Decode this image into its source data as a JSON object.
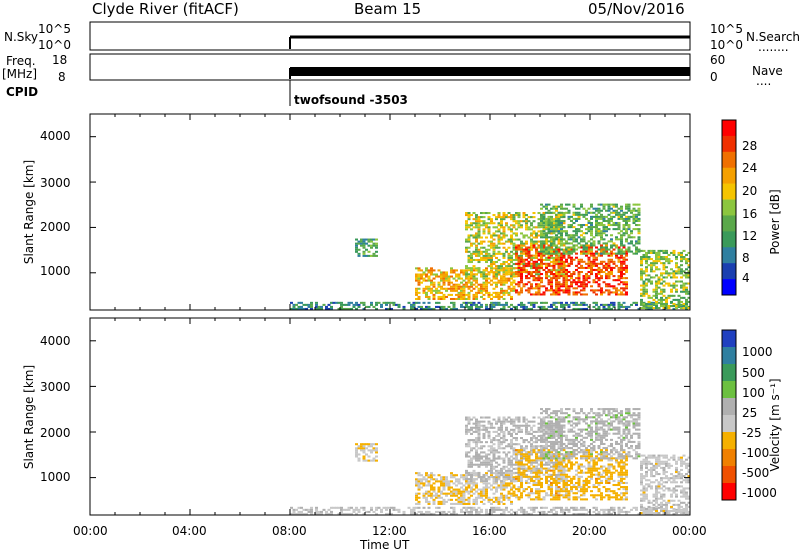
{
  "header": {
    "station": "Clyde River (fitACF)",
    "beam": "Beam 15",
    "date": "05/Nov/2016"
  },
  "top_panels": {
    "nsky_label": "N.Sky",
    "nsky_ticks": [
      "10^5",
      "10^0"
    ],
    "nsearch_label": "N.Search",
    "nsearch_ticks": [
      "10^5",
      "10^0"
    ],
    "freq_label": "Freq.",
    "freq_unit": "[MHz]",
    "freq_ticks": [
      "18",
      "8"
    ],
    "nave_label": "Nave",
    "nave_ticks": [
      "60",
      "0"
    ],
    "cpid_label": "CPID",
    "cpid_value": "twofsound -3503"
  },
  "x_axis": {
    "label": "Time UT",
    "ticks": [
      "00:00",
      "04:00",
      "08:00",
      "12:00",
      "16:00",
      "20:00",
      "00:00"
    ]
  },
  "power_panel": {
    "ylabel": "Slant Range [km]",
    "yticks": [
      "4000",
      "3000",
      "2000",
      "1000"
    ],
    "colorbar_label": "Power [dB]",
    "colorbar_ticks": [
      "28",
      "24",
      "20",
      "16",
      "12",
      "8",
      "4"
    ],
    "colors": [
      "#0000ff",
      "#1a3fb0",
      "#2f7fa0",
      "#3a9a5a",
      "#5aa84a",
      "#8cc63f",
      "#f5c400",
      "#f5a000",
      "#f07000",
      "#f03000",
      "#ff0000"
    ]
  },
  "velocity_panel": {
    "ylabel": "Slant Range [km]",
    "yticks": [
      "4000",
      "3000",
      "2000",
      "1000"
    ],
    "colorbar_label": "Velocity [m s⁻¹]",
    "colorbar_ticks": [
      "1000",
      "500",
      "100",
      "25",
      "-25",
      "-100",
      "-500",
      "-1000"
    ],
    "colors": [
      "#2040c0",
      "#2f7fa0",
      "#3a9a5a",
      "#6cc040",
      "#b0b0b0",
      "#c8c8c8",
      "#f5b000",
      "#f08000",
      "#f05000",
      "#ff0000"
    ]
  },
  "chart_data": {
    "type": "heatmap",
    "x_unit": "hours UT",
    "x_range": [
      0,
      24
    ],
    "y_range_km": [
      180,
      4500
    ],
    "data_start_hour": 8,
    "power_scale_db": [
      0,
      30
    ],
    "velocity_scale_ms": [
      -1000,
      1000
    ],
    "echo_regions": [
      {
        "t_start": 8.0,
        "t_end": 24.0,
        "r_min": 180,
        "r_max": 320,
        "power_db": 8,
        "velocity_ms": -50
      },
      {
        "t_start": 10.6,
        "t_end": 11.4,
        "r_min": 1350,
        "r_max": 1750,
        "power_db": 10,
        "velocity_ms": -150
      },
      {
        "t_start": 13.0,
        "t_end": 17.0,
        "r_min": 400,
        "r_max": 1100,
        "power_db": 20,
        "velocity_ms": -200
      },
      {
        "t_start": 15.0,
        "t_end": 19.0,
        "r_min": 900,
        "r_max": 2300,
        "power_db": 16,
        "velocity_ms": 50
      },
      {
        "t_start": 17.0,
        "t_end": 21.5,
        "r_min": 500,
        "r_max": 1600,
        "power_db": 26,
        "velocity_ms": -300
      },
      {
        "t_start": 18.0,
        "t_end": 22.0,
        "r_min": 1400,
        "r_max": 2500,
        "power_db": 12,
        "velocity_ms": 100
      },
      {
        "t_start": 22.0,
        "t_end": 24.0,
        "r_min": 200,
        "r_max": 1500,
        "power_db": 14,
        "velocity_ms": -80
      }
    ]
  }
}
